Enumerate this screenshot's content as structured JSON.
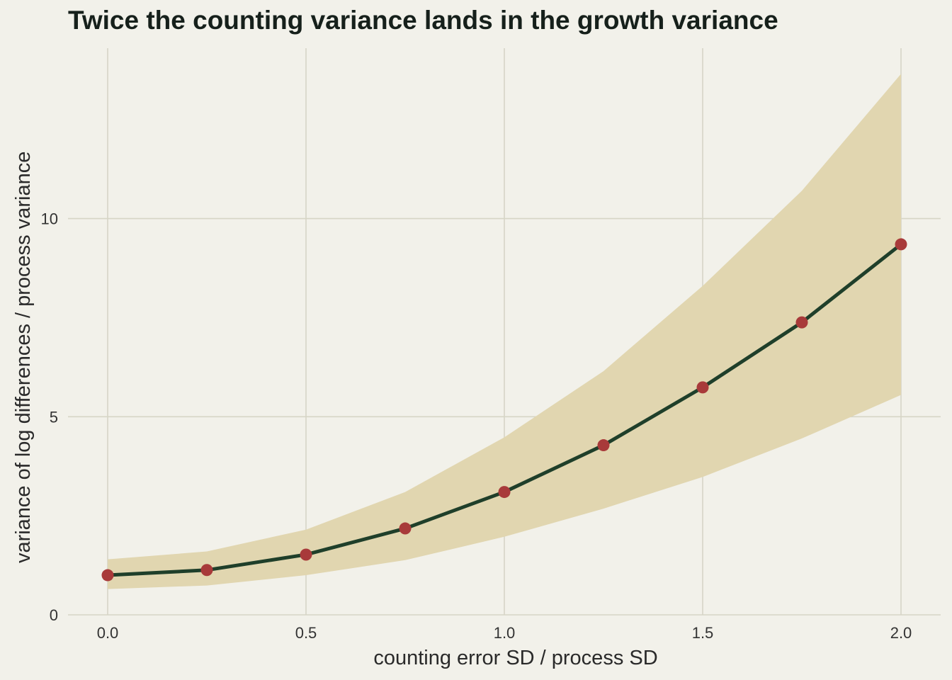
{
  "chart_data": {
    "type": "line",
    "title": "Twice the counting variance lands in the growth variance",
    "xlabel": "counting error SD / process SD",
    "ylabel": "variance of log differences / process variance",
    "x": [
      0.0,
      0.25,
      0.5,
      0.75,
      1.0,
      1.25,
      1.5,
      1.75,
      2.0
    ],
    "series": [
      {
        "values": [
          1.0,
          1.13,
          1.52,
          2.18,
          3.1,
          4.28,
          5.74,
          7.38,
          9.35
        ],
        "band_upper": [
          1.4,
          1.6,
          2.15,
          3.1,
          4.48,
          6.15,
          8.3,
          10.7,
          13.65
        ],
        "band_lower": [
          0.65,
          0.74,
          1.0,
          1.38,
          1.97,
          2.68,
          3.48,
          4.45,
          5.55
        ]
      }
    ],
    "xticks": [
      "0.0",
      "0.5",
      "1.0",
      "1.5",
      "2.0"
    ],
    "xtick_values": [
      0.0,
      0.5,
      1.0,
      1.5,
      2.0
    ],
    "yticks": [
      "0",
      "5",
      "10"
    ],
    "ytick_values": [
      0,
      5,
      10
    ],
    "xlim": [
      -0.1,
      2.1
    ],
    "ylim": [
      0,
      14.3
    ],
    "grid": true,
    "legend": "none"
  },
  "colors": {
    "background": "#f2f1ea",
    "grid": "#d6d5c6",
    "band": "#e1d6b0",
    "line": "#1f3f2a",
    "points": "#a83a3a",
    "title": "#16201b"
  }
}
